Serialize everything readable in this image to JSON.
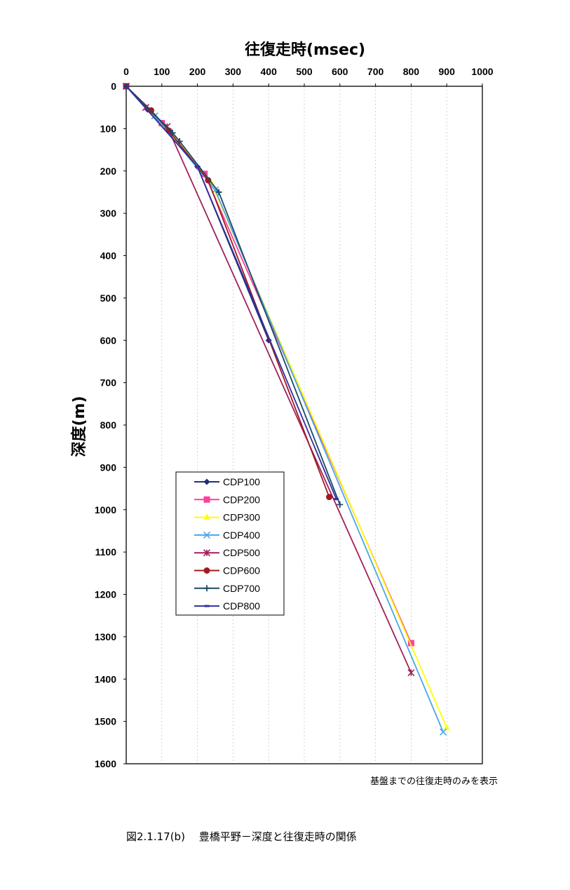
{
  "chart_data": {
    "type": "line",
    "xlabel": "往復走時(msec)",
    "ylabel": "深度(m)",
    "xlim": [
      0,
      1000
    ],
    "ylim": [
      0,
      1600
    ],
    "y_inverted": true,
    "x_axis_position": "top",
    "x_ticks": [
      "0",
      "100",
      "200",
      "300",
      "400",
      "500",
      "600",
      "700",
      "800",
      "900",
      "1000"
    ],
    "y_ticks": [
      "0",
      "100",
      "200",
      "300",
      "400",
      "500",
      "600",
      "700",
      "800",
      "900",
      "1000",
      "1100",
      "1200",
      "1300",
      "1400",
      "1500",
      "1600"
    ],
    "grid": true,
    "legend_position": "lower-left",
    "series": [
      {
        "name": "CDP100",
        "color": "#1f2f7a",
        "marker": "diamond",
        "points": [
          [
            0,
            0
          ],
          [
            60,
            55
          ],
          [
            200,
            190
          ],
          [
            400,
            600
          ]
        ]
      },
      {
        "name": "CDP200",
        "color": "#ff3fa0",
        "marker": "square",
        "points": [
          [
            0,
            0
          ],
          [
            100,
            87
          ],
          [
            220,
            207
          ],
          [
            800,
            1315
          ]
        ]
      },
      {
        "name": "CDP300",
        "color": "#ffff00",
        "marker": "triangle",
        "points": [
          [
            0,
            0
          ],
          [
            135,
            120
          ],
          [
            240,
            230
          ],
          [
            900,
            1515
          ]
        ]
      },
      {
        "name": "CDP400",
        "color": "#4aa6e8",
        "marker": "x",
        "points": [
          [
            0,
            0
          ],
          [
            80,
            70
          ],
          [
            250,
            245
          ],
          [
            890,
            1525
          ]
        ]
      },
      {
        "name": "CDP500",
        "color": "#a0205a",
        "marker": "asterisk",
        "points": [
          [
            0,
            0
          ],
          [
            55,
            50
          ],
          [
            115,
            95
          ],
          [
            800,
            1385
          ]
        ]
      },
      {
        "name": "CDP600",
        "color": "#a01a20",
        "marker": "circle",
        "points": [
          [
            0,
            0
          ],
          [
            70,
            57
          ],
          [
            120,
            105
          ],
          [
            230,
            222
          ],
          [
            570,
            970
          ]
        ]
      },
      {
        "name": "CDP700",
        "color": "#1a4a6a",
        "marker": "plus",
        "points": [
          [
            0,
            0
          ],
          [
            130,
            110
          ],
          [
            150,
            130
          ],
          [
            260,
            250
          ],
          [
            600,
            988
          ]
        ]
      },
      {
        "name": "CDP800",
        "color": "#3030a0",
        "marker": "dash",
        "points": [
          [
            0,
            0
          ],
          [
            200,
            190
          ],
          [
            590,
            975
          ]
        ]
      }
    ]
  },
  "note": "基盤までの往復走時のみを表示",
  "caption": "図2.1.17(b)　 豊橋平野－深度と往復走時の関係"
}
